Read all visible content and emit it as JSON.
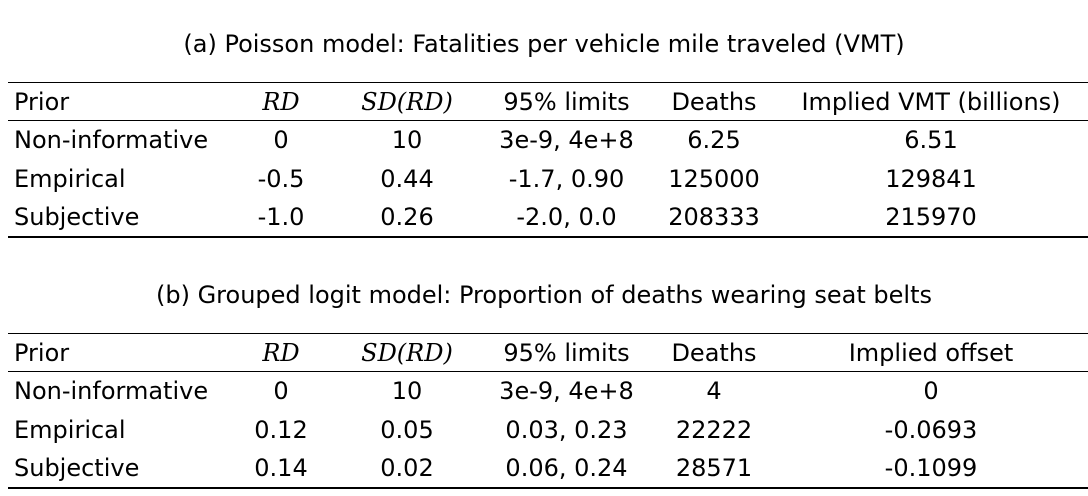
{
  "panel_a": {
    "caption": "(a) Poisson model: Fatalities per vehicle mile traveled (VMT)",
    "headers": {
      "prior": "Prior",
      "rd": "RD",
      "sd_rd": "SD(RD)",
      "limits": "95% limits",
      "deaths": "Deaths",
      "implied": "Implied VMT (billions)"
    },
    "rows": [
      {
        "prior": "Non-informative",
        "rd": "0",
        "sd_rd": "10",
        "limits": "3e-9, 4e+8",
        "deaths": "6.25",
        "implied": "6.51"
      },
      {
        "prior": "Empirical",
        "rd": "-0.5",
        "sd_rd": "0.44",
        "limits": "-1.7, 0.90",
        "deaths": "125000",
        "implied": "129841"
      },
      {
        "prior": "Subjective",
        "rd": "-1.0",
        "sd_rd": "0.26",
        "limits": "-2.0, 0.0",
        "deaths": "208333",
        "implied": "215970"
      }
    ]
  },
  "panel_b": {
    "caption": "(b) Grouped logit model: Proportion of deaths wearing seat belts",
    "headers": {
      "prior": "Prior",
      "rd": "RD",
      "sd_rd": "SD(RD)",
      "limits": "95% limits",
      "deaths": "Deaths",
      "implied": "Implied offset"
    },
    "rows": [
      {
        "prior": "Non-informative",
        "rd": "0",
        "sd_rd": "10",
        "limits": "3e-9, 4e+8",
        "deaths": "4",
        "implied": "0"
      },
      {
        "prior": "Empirical",
        "rd": "0.12",
        "sd_rd": "0.05",
        "limits": "0.03, 0.23",
        "deaths": "22222",
        "implied": "-0.0693"
      },
      {
        "prior": "Subjective",
        "rd": "0.14",
        "sd_rd": "0.02",
        "limits": "0.06, 0.24",
        "deaths": "28571",
        "implied": "-0.1099"
      }
    ]
  }
}
